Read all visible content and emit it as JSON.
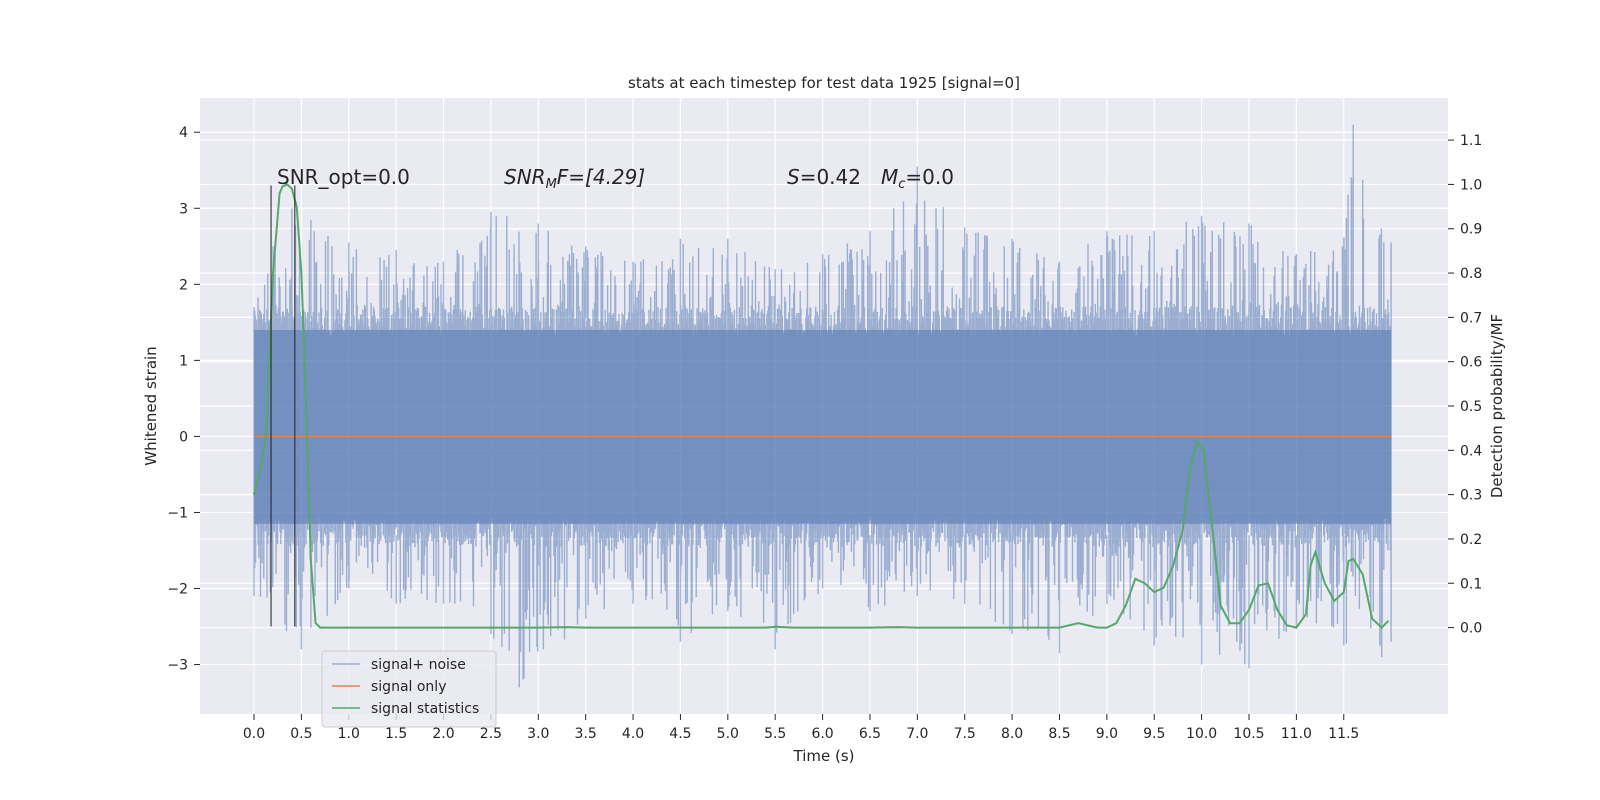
{
  "chart_data": {
    "type": "line",
    "title": "stats at each timestep for test data 1925 [signal=0]",
    "xlabel": "Time (s)",
    "ylabel": "Whitened strain",
    "ylabel_right": "Detection probability/MF",
    "xlim": [
      -0.57,
      12.6
    ],
    "ylim": [
      -3.65,
      4.45
    ],
    "ylim_right": [
      -0.195,
      1.195
    ],
    "xticks": [
      "0.0",
      "0.5",
      "1.0",
      "1.5",
      "2.0",
      "2.5",
      "3.0",
      "3.5",
      "4.0",
      "4.5",
      "5.0",
      "5.5",
      "6.0",
      "6.5",
      "7.0",
      "7.5",
      "8.0",
      "8.5",
      "9.0",
      "9.5",
      "10.0",
      "10.5",
      "11.0",
      "11.5"
    ],
    "yticks_left": [
      "−3",
      "−2",
      "−1",
      "0",
      "1",
      "2",
      "3",
      "4"
    ],
    "yticks_right": [
      "0.0",
      "0.1",
      "0.2",
      "0.3",
      "0.4",
      "0.5",
      "0.6",
      "0.7",
      "0.8",
      "0.9",
      "1.0",
      "1.1"
    ],
    "grid": true,
    "legend_position": "lower-left",
    "legend": [
      "signal+ noise",
      "signal only",
      "signal statistics"
    ],
    "annotations": {
      "snr_opt": "SNR_opt=0.0",
      "snr_mf_prefix": "SNR",
      "snr_mf_sub": "M",
      "snr_mf_suffix": "F=[4.29]",
      "s_label": "S",
      "s_value": "=0.42",
      "mc_label": "M",
      "mc_sub": "c",
      "mc_value": "=0.0"
    },
    "vertical_lines_x": [
      0.18,
      0.43
    ],
    "series": [
      {
        "name": "signal+ noise",
        "color": "#4c72b0",
        "alpha": 0.5,
        "style": "noise",
        "x_range": [
          0.0,
          12.0
        ],
        "upper_envelope": [
          [
            0.0,
            1.7
          ],
          [
            0.2,
            2.5
          ],
          [
            0.4,
            3.0
          ],
          [
            0.6,
            2.85
          ],
          [
            1.0,
            2.55
          ],
          [
            1.5,
            2.45
          ],
          [
            2.0,
            2.3
          ],
          [
            2.5,
            2.95
          ],
          [
            3.0,
            2.8
          ],
          [
            3.5,
            2.5
          ],
          [
            4.0,
            2.3
          ],
          [
            4.5,
            2.6
          ],
          [
            5.0,
            2.6
          ],
          [
            5.5,
            2.2
          ],
          [
            6.0,
            2.4
          ],
          [
            6.5,
            2.7
          ],
          [
            7.0,
            3.55
          ],
          [
            7.5,
            2.75
          ],
          [
            8.0,
            2.6
          ],
          [
            8.5,
            2.3
          ],
          [
            9.0,
            2.7
          ],
          [
            9.5,
            2.7
          ],
          [
            10.0,
            2.9
          ],
          [
            10.5,
            2.8
          ],
          [
            11.0,
            2.4
          ],
          [
            11.5,
            2.6
          ],
          [
            11.6,
            4.1
          ],
          [
            12.0,
            2.55
          ]
        ],
        "lower_envelope": [
          [
            0.0,
            -2.1
          ],
          [
            0.5,
            -2.8
          ],
          [
            1.0,
            -2.0
          ],
          [
            1.5,
            -2.2
          ],
          [
            2.0,
            -2.2
          ],
          [
            2.5,
            -2.6
          ],
          [
            2.8,
            -3.3
          ],
          [
            3.5,
            -2.4
          ],
          [
            4.0,
            -2.2
          ],
          [
            4.5,
            -2.7
          ],
          [
            5.0,
            -2.3
          ],
          [
            5.5,
            -2.8
          ],
          [
            6.0,
            -2.0
          ],
          [
            6.5,
            -2.3
          ],
          [
            7.0,
            -2.1
          ],
          [
            7.5,
            -2.2
          ],
          [
            8.0,
            -2.6
          ],
          [
            8.5,
            -2.85
          ],
          [
            9.0,
            -2.2
          ],
          [
            9.5,
            -2.75
          ],
          [
            10.0,
            -3.0
          ],
          [
            10.5,
            -3.05
          ],
          [
            11.0,
            -2.5
          ],
          [
            11.5,
            -2.75
          ],
          [
            11.9,
            -2.9
          ],
          [
            12.0,
            -2.7
          ]
        ],
        "core_band": [
          -1.3,
          1.55
        ]
      },
      {
        "name": "signal only",
        "color": "#dd8452",
        "x": [
          0.0,
          12.0
        ],
        "y": [
          0.0,
          0.0
        ]
      },
      {
        "name": "signal statistics",
        "color": "#55a868",
        "axis": "right",
        "x": [
          0.0,
          0.07,
          0.13,
          0.2,
          0.27,
          0.3,
          0.35,
          0.4,
          0.45,
          0.5,
          0.55,
          0.6,
          0.65,
          0.7,
          1.0,
          1.5,
          2.0,
          2.5,
          3.0,
          3.3,
          3.5,
          4.0,
          4.5,
          5.0,
          5.4,
          5.5,
          5.7,
          6.0,
          6.5,
          6.8,
          7.0,
          7.5,
          8.0,
          8.5,
          8.7,
          8.9,
          9.0,
          9.1,
          9.2,
          9.3,
          9.4,
          9.5,
          9.6,
          9.7,
          9.8,
          9.88,
          9.95,
          10.02,
          10.1,
          10.2,
          10.3,
          10.4,
          10.5,
          10.6,
          10.7,
          10.8,
          10.9,
          11.0,
          11.1,
          11.15,
          11.2,
          11.3,
          11.4,
          11.5,
          11.55,
          11.6,
          11.7,
          11.8,
          11.9,
          11.97
        ],
        "y": [
          0.3,
          0.36,
          0.44,
          0.8,
          0.98,
          0.995,
          1.0,
          0.99,
          0.95,
          0.8,
          0.5,
          0.15,
          0.01,
          0.0,
          0.0,
          0.0,
          0.0,
          0.0,
          0.0,
          0.001,
          0.0,
          0.0,
          0.0,
          0.0,
          0.0,
          0.002,
          0.0,
          0.0,
          0.0,
          0.001,
          0.0,
          0.0,
          0.0,
          0.0,
          0.01,
          0.0,
          0.0,
          0.01,
          0.05,
          0.11,
          0.1,
          0.08,
          0.09,
          0.14,
          0.22,
          0.36,
          0.42,
          0.4,
          0.25,
          0.05,
          0.01,
          0.01,
          0.04,
          0.095,
          0.1,
          0.04,
          0.005,
          0.0,
          0.03,
          0.14,
          0.17,
          0.1,
          0.06,
          0.08,
          0.15,
          0.155,
          0.12,
          0.02,
          0.0,
          0.015
        ]
      }
    ]
  }
}
